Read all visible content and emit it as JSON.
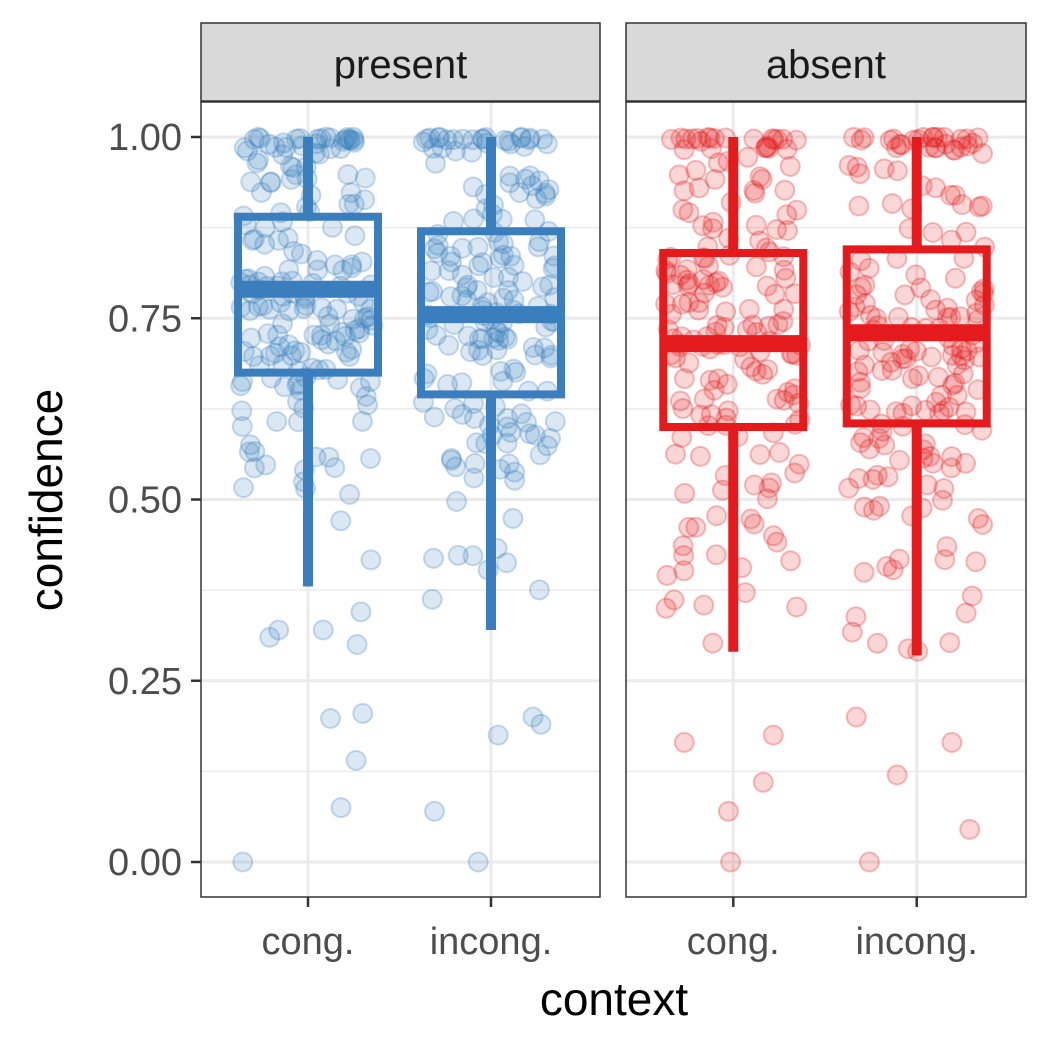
{
  "chart_data": {
    "type": "boxplot",
    "xlabel": "context",
    "ylabel": "confidence",
    "ylim": [
      0,
      1
    ],
    "y_ticks": [
      0,
      0.25,
      0.5,
      0.75,
      1
    ],
    "y_tick_labels": [
      "0.00",
      "0.25",
      "0.50",
      "0.75",
      "1.00"
    ],
    "categories": [
      "cong.",
      "incong."
    ],
    "grid": true,
    "panels": [
      {
        "label": "present",
        "color": "#3a7ebe",
        "boxes": [
          {
            "category": "cong.",
            "whisker_low": 0.38,
            "q1": 0.675,
            "median": 0.79,
            "q3": 0.89,
            "whisker_high": 1.0,
            "outliers": [
              0.345,
              0.32,
              0.31,
              0.3,
              0.32,
              0.205,
              0.198,
              0.14,
              0.075,
              0.0
            ]
          },
          {
            "category": "incong.",
            "whisker_low": 0.32,
            "q1": 0.645,
            "median": 0.755,
            "q3": 0.87,
            "whisker_high": 1.0,
            "outliers": [
              0.2,
              0.19,
              0.175,
              0.07,
              0.0
            ]
          }
        ]
      },
      {
        "label": "absent",
        "color": "#e41a1c",
        "boxes": [
          {
            "category": "cong.",
            "whisker_low": 0.29,
            "q1": 0.6,
            "median": 0.715,
            "q3": 0.84,
            "whisker_high": 1.0,
            "outliers": [
              0.175,
              0.165,
              0.11,
              0.07,
              0.0
            ]
          },
          {
            "category": "incong.",
            "whisker_low": 0.285,
            "q1": 0.605,
            "median": 0.73,
            "q3": 0.845,
            "whisker_high": 1.0,
            "outliers": [
              0.2,
              0.165,
              0.12,
              0.045,
              0.0
            ]
          }
        ]
      }
    ]
  }
}
